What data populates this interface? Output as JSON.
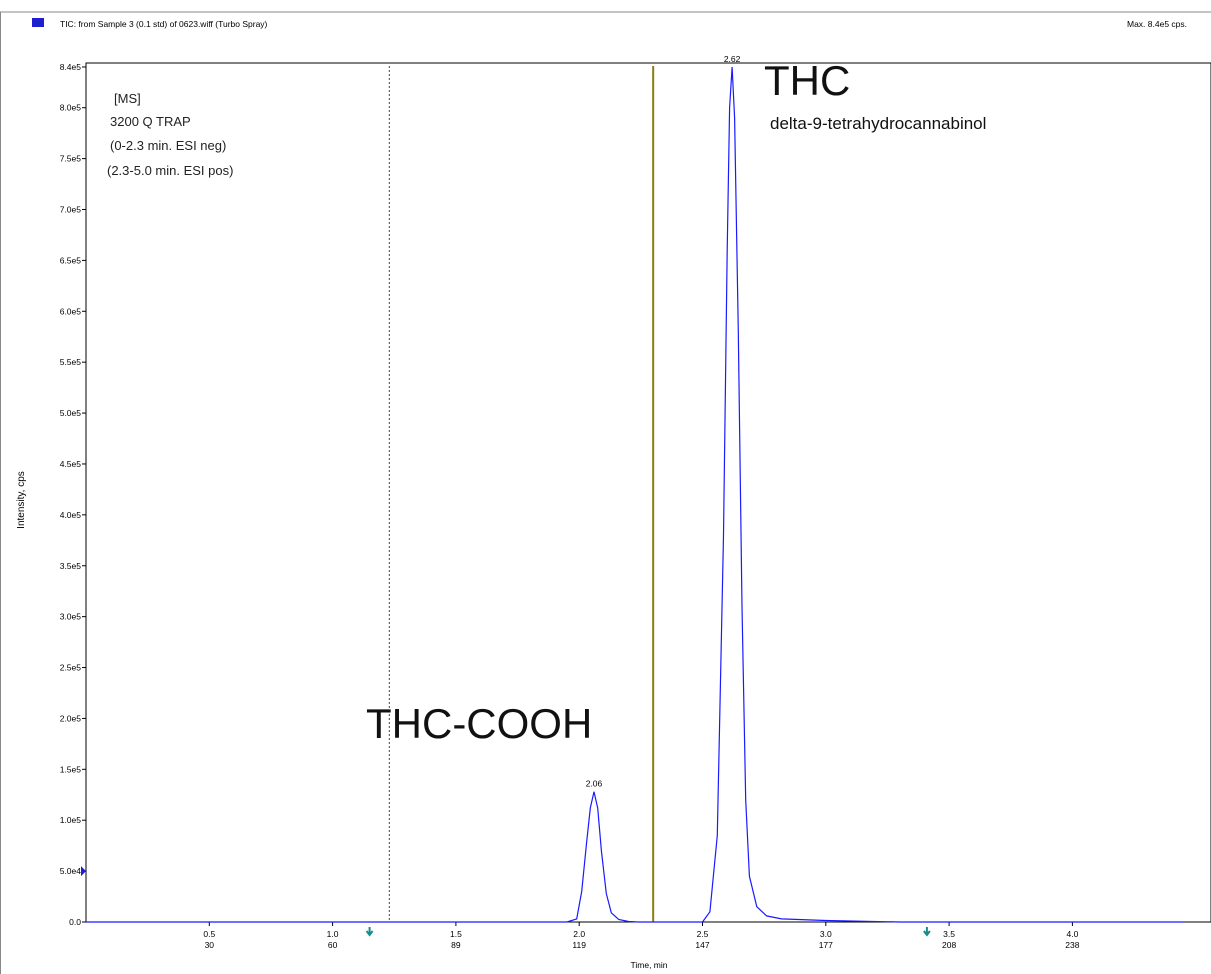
{
  "header": {
    "title": "TIC: from Sample 3 (0.1 std) of 0623.wiff (Turbo Spray)",
    "max_label": "Max. 8.4e5 cps.",
    "marker_color": "#1f1fd0"
  },
  "info_box": {
    "lines": [
      "[MS]",
      "3200 Q TRAP",
      "(0-2.3 min. ESI neg)",
      "(2.3-5.0 min. ESI pos)"
    ]
  },
  "annotations": {
    "thc_title": "THC",
    "thc_subtitle": "delta-9-tetrahydrocannabinol",
    "thccooh_title": "THC-COOH"
  },
  "chart_data": {
    "type": "line",
    "xlabel": "Time, min",
    "ylabel": "Intensity, cps",
    "xlim": [
      0.0,
      4.45
    ],
    "ylim": [
      0,
      840000
    ],
    "y_ticks": [
      {
        "value": 0,
        "label": "0.0"
      },
      {
        "value": 50000,
        "label": "5.0e4"
      },
      {
        "value": 100000,
        "label": "1.0e5"
      },
      {
        "value": 150000,
        "label": "1.5e5"
      },
      {
        "value": 200000,
        "label": "2.0e5"
      },
      {
        "value": 250000,
        "label": "2.5e5"
      },
      {
        "value": 300000,
        "label": "3.0e5"
      },
      {
        "value": 350000,
        "label": "3.5e5"
      },
      {
        "value": 400000,
        "label": "4.0e5"
      },
      {
        "value": 450000,
        "label": "4.5e5"
      },
      {
        "value": 500000,
        "label": "5.0e5"
      },
      {
        "value": 550000,
        "label": "5.5e5"
      },
      {
        "value": 600000,
        "label": "6.0e5"
      },
      {
        "value": 650000,
        "label": "6.5e5"
      },
      {
        "value": 700000,
        "label": "7.0e5"
      },
      {
        "value": 750000,
        "label": "7.5e5"
      },
      {
        "value": 800000,
        "label": "8.0e5"
      },
      {
        "value": 840000,
        "label": "8.4e5"
      }
    ],
    "x_ticks": [
      {
        "value": 0.5,
        "label": "0.5",
        "scan": "30"
      },
      {
        "value": 1.0,
        "label": "1.0",
        "scan": "60"
      },
      {
        "value": 1.5,
        "label": "1.5",
        "scan": "89"
      },
      {
        "value": 2.0,
        "label": "2.0",
        "scan": "119"
      },
      {
        "value": 2.5,
        "label": "2.5",
        "scan": "147"
      },
      {
        "value": 3.0,
        "label": "3.0",
        "scan": "177"
      },
      {
        "value": 3.5,
        "label": "3.5",
        "scan": "208"
      },
      {
        "value": 4.0,
        "label": "4.0",
        "scan": "238"
      }
    ],
    "series": [
      {
        "color": "#1a1aff",
        "x": [
          0.0,
          1.95,
          1.99,
          2.01,
          2.03,
          2.045,
          2.06,
          2.075,
          2.09,
          2.11,
          2.13,
          2.16,
          2.2,
          2.24,
          2.5,
          2.53,
          2.56,
          2.585,
          2.6,
          2.61,
          2.62,
          2.63,
          2.645,
          2.66,
          2.675,
          2.69,
          2.72,
          2.76,
          2.82,
          3.0,
          3.3,
          4.45
        ],
        "y": [
          0,
          0,
          3000,
          30000,
          78000,
          112000,
          128000,
          112000,
          70000,
          28000,
          9000,
          2500,
          500,
          0,
          0,
          10000,
          85000,
          380000,
          660000,
          800000,
          840000,
          790000,
          580000,
          310000,
          120000,
          45000,
          15000,
          6000,
          3000,
          1500,
          0,
          0
        ]
      }
    ],
    "peak_labels": [
      {
        "x": 2.06,
        "y": 128000,
        "label": "2.06"
      },
      {
        "x": 2.62,
        "y": 840000,
        "label": "2.62"
      }
    ],
    "period_markers": [
      {
        "x": 1.23,
        "style": "dashed",
        "color": "#444444"
      },
      {
        "x": 2.3,
        "style": "solid",
        "color": "#8b7d10"
      }
    ],
    "arrow_markers": [
      {
        "x": 1.15,
        "color": "#1a8a8a"
      },
      {
        "x": 3.41,
        "color": "#1a8a8a"
      }
    ],
    "y_marker": {
      "y": 50000,
      "color": "#1f1fd0"
    }
  }
}
